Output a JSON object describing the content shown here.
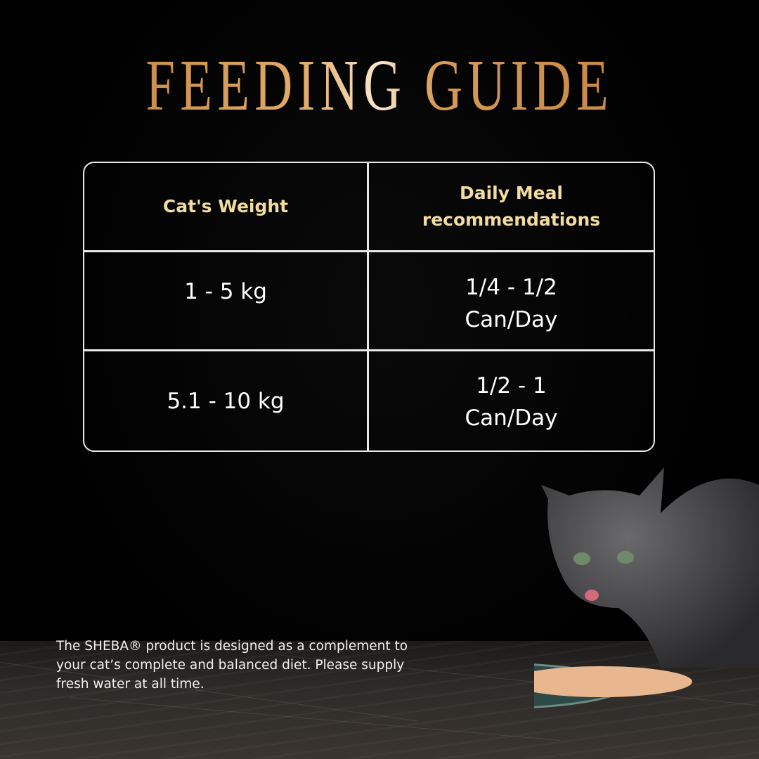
{
  "title": "FEEDING GUIDE",
  "table": {
    "headers": [
      "Cat's Weight",
      "Daily Meal recommendations"
    ],
    "rows": [
      {
        "weight": "1 - 5 kg",
        "meal_line1": "1/4 - 1/2",
        "meal_line2": "Can/Day"
      },
      {
        "weight": "5.1 - 10 kg",
        "meal_line1": "1/2 - 1",
        "meal_line2": "Can/Day"
      }
    ]
  },
  "footnote": "The SHEBA® product is designed as a complement to your cat’s complete and balanced diet. Please supply fresh water at all time.",
  "colors": {
    "title_gold": "#d89a55",
    "header_gold": "#f2dc9f",
    "background": "#000000"
  }
}
